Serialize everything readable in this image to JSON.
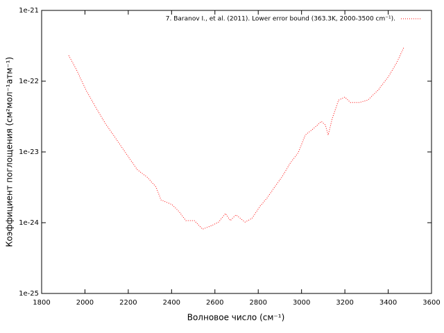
{
  "chart_data": {
    "type": "line",
    "xlabel": "Волновое число (см⁻¹)",
    "ylabel": "Коэффициент поглощения (см²мол⁻¹атм⁻¹)",
    "x": [
      1925,
      1960,
      2005,
      2050,
      2095,
      2143,
      2191,
      2242,
      2287,
      2328,
      2351,
      2402,
      2434,
      2466,
      2505,
      2543,
      2585,
      2617,
      2649,
      2671,
      2697,
      2739,
      2771,
      2809,
      2841,
      2876,
      2911,
      2947,
      2985,
      3017,
      3056,
      3091,
      3110,
      3123,
      3142,
      3171,
      3200,
      3225,
      3267,
      3306,
      3354,
      3402,
      3440,
      3472
    ],
    "series": [
      {
        "name": "7. Baranov I., et al. (2011). Lower error bound (363.3K, 2000-3500 cm⁻¹).",
        "color": "#ff0000",
        "values": [
          2.31e-22,
          1.47e-22,
          7.46e-23,
          4.26e-23,
          2.5e-23,
          1.54e-23,
          9.4e-24,
          5.6e-24,
          4.4e-24,
          3.2e-24,
          2.1e-24,
          1.8e-24,
          1.44e-24,
          1.07e-24,
          1.07e-24,
          8.1e-25,
          9.1e-25,
          1.02e-24,
          1.35e-24,
          1.07e-24,
          1.29e-24,
          1.02e-24,
          1.15e-24,
          1.72e-24,
          2.24e-24,
          3.2e-24,
          4.5e-24,
          6.9e-24,
          9.8e-24,
          1.73e-23,
          2.15e-23,
          2.7e-23,
          2.4e-23,
          1.73e-23,
          3e-23,
          5.4e-23,
          5.96e-23,
          5e-23,
          5e-23,
          5.4e-23,
          7.5e-23,
          1.17e-22,
          1.84e-22,
          3e-22
        ]
      }
    ],
    "xlim": [
      1800,
      3600
    ],
    "xticks": [
      1800,
      2000,
      2200,
      2400,
      2600,
      2800,
      3000,
      3200,
      3400,
      3600
    ],
    "ylim": [
      1e-25,
      1e-21
    ],
    "yticks": [
      1e-25,
      1e-24,
      1e-23,
      1e-22,
      1e-21
    ],
    "ylog": true,
    "legend": "top-right"
  }
}
